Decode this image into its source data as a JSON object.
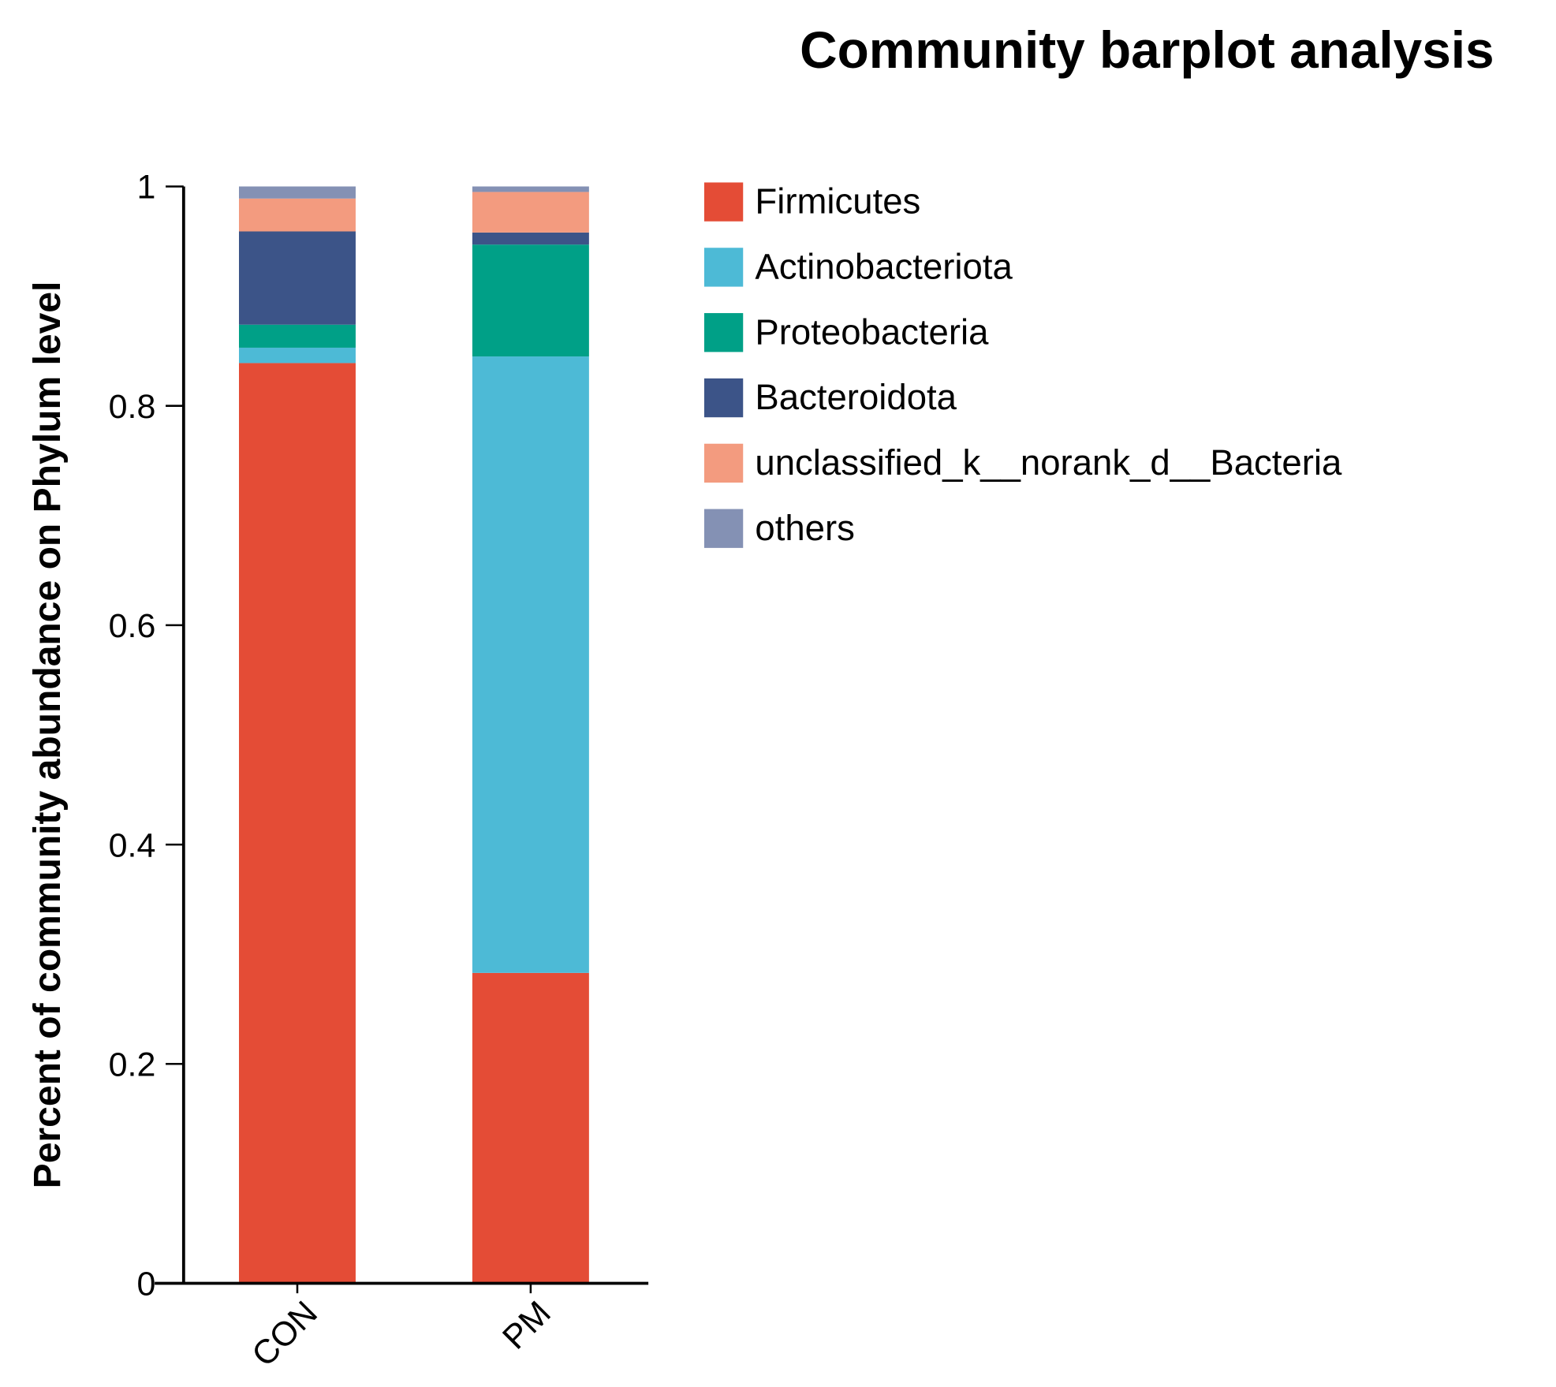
{
  "chart_data": {
    "type": "bar",
    "stacked": true,
    "title": "Community barplot analysis",
    "xlabel": "",
    "ylabel": "Percent of community abundance on Phylum level",
    "ylim": [
      0,
      1
    ],
    "yticks": [
      "0",
      "0.2",
      "0.4",
      "0.6",
      "0.8",
      "1"
    ],
    "categories": [
      "CON",
      "PM"
    ],
    "grid": false,
    "legend_position": "right",
    "series": [
      {
        "name": "Firmicutes",
        "color": "#E44C36",
        "values": [
          0.839,
          0.283
        ]
      },
      {
        "name": "Actinobacteriota",
        "color": "#4DBAD6",
        "values": [
          0.014,
          0.562
        ]
      },
      {
        "name": "Proteobacteria",
        "color": "#00A087",
        "values": [
          0.021,
          0.102
        ]
      },
      {
        "name": "Bacteroidota",
        "color": "#3C5488",
        "values": [
          0.085,
          0.011
        ]
      },
      {
        "name": "unclassified_k__norank_d__Bacteria",
        "color": "#F39B7F",
        "values": [
          0.03,
          0.037
        ]
      },
      {
        "name": "others",
        "color": "#8491B4",
        "values": [
          0.011,
          0.005
        ]
      }
    ]
  }
}
